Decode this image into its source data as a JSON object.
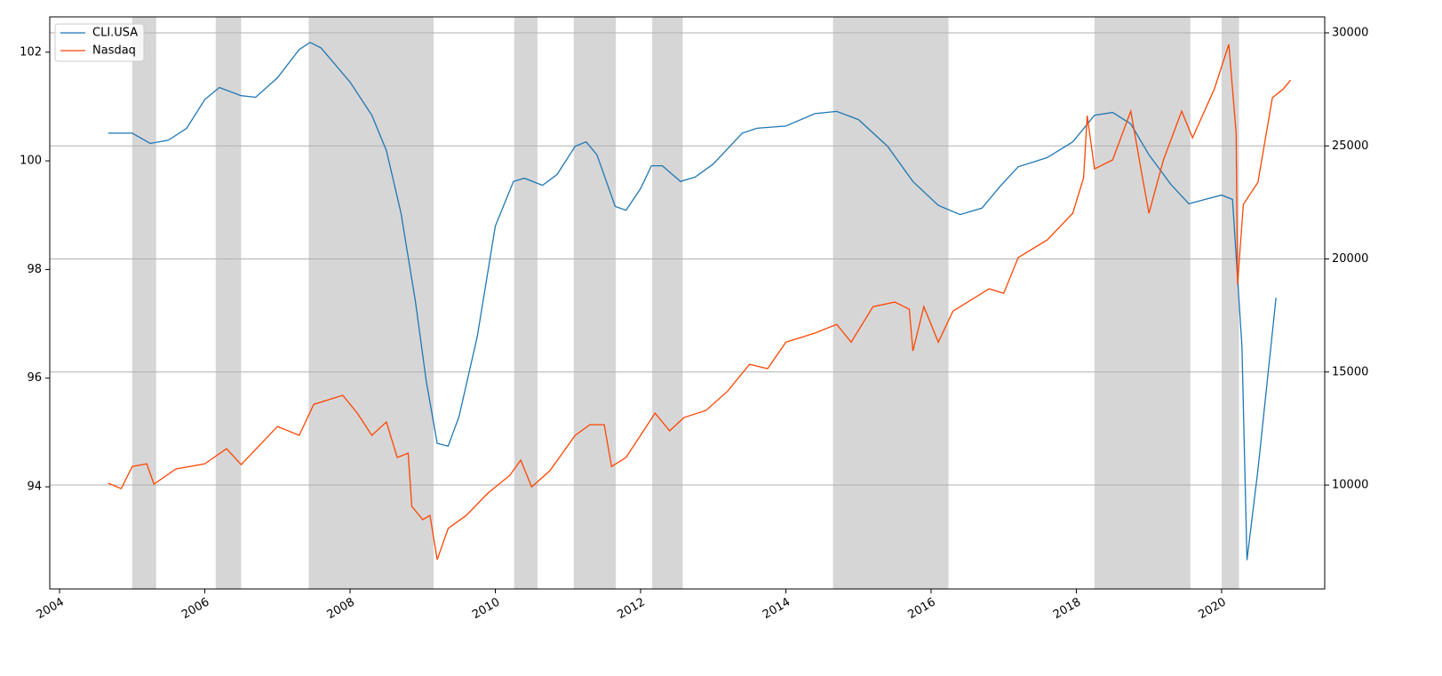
{
  "chart_data": {
    "type": "line",
    "xlim": [
      2003.865,
      2021.42
    ],
    "xticks": [
      2004,
      2006,
      2008,
      2010,
      2012,
      2014,
      2016,
      2018,
      2020
    ],
    "ylim": [
      92.12,
      102.65
    ],
    "yticks": [
      94,
      96,
      98,
      100,
      102
    ],
    "y2lim": [
      5405,
      30707
    ],
    "y2ticks": [
      10000,
      15000,
      20000,
      25000,
      30000
    ],
    "grid": true,
    "legend": "upper left",
    "span_color": "#d6d6d6",
    "shaded_regions": [
      [
        2005.0,
        2005.33
      ],
      [
        2006.15,
        2006.5
      ],
      [
        2007.43,
        2009.15
      ],
      [
        2010.26,
        2010.58
      ],
      [
        2011.08,
        2011.66
      ],
      [
        2012.16,
        2012.58
      ],
      [
        2014.65,
        2016.24
      ],
      [
        2018.25,
        2019.57
      ],
      [
        2020.0,
        2020.24
      ]
    ],
    "series": [
      {
        "name": "CLI.USA",
        "color": "#1f77b4",
        "x": [
          2004.67,
          2005.0,
          2005.25,
          2005.5,
          2005.75,
          2006.0,
          2006.2,
          2006.5,
          2006.7,
          2007.0,
          2007.3,
          2007.45,
          2007.6,
          2008.0,
          2008.3,
          2008.5,
          2008.7,
          2008.9,
          2009.05,
          2009.2,
          2009.35,
          2009.5,
          2009.75,
          2010.0,
          2010.25,
          2010.4,
          2010.65,
          2010.85,
          2011.1,
          2011.25,
          2011.4,
          2011.65,
          2011.8,
          2012.0,
          2012.15,
          2012.3,
          2012.55,
          2012.75,
          2013.0,
          2013.4,
          2013.6,
          2014.0,
          2014.4,
          2014.7,
          2015.0,
          2015.4,
          2015.75,
          2016.1,
          2016.4,
          2016.7,
          2016.95,
          2017.2,
          2017.6,
          2017.95,
          2018.25,
          2018.5,
          2018.75,
          2019.0,
          2019.3,
          2019.55,
          2019.8,
          2020.0,
          2020.15,
          2020.28,
          2020.35,
          2020.5,
          2020.75
        ],
        "values": [
          100.51,
          100.51,
          100.32,
          100.38,
          100.6,
          101.13,
          101.35,
          101.2,
          101.17,
          101.53,
          102.05,
          102.18,
          102.08,
          101.45,
          100.84,
          100.19,
          99.05,
          97.41,
          95.94,
          94.8,
          94.75,
          95.29,
          96.76,
          98.8,
          99.62,
          99.68,
          99.55,
          99.75,
          100.27,
          100.35,
          100.11,
          99.16,
          99.09,
          99.49,
          99.91,
          99.91,
          99.62,
          99.7,
          99.94,
          100.51,
          100.6,
          100.64,
          100.87,
          100.91,
          100.76,
          100.27,
          99.62,
          99.18,
          99.01,
          99.13,
          99.53,
          99.89,
          100.06,
          100.35,
          100.84,
          100.89,
          100.68,
          100.11,
          99.57,
          99.21,
          99.3,
          99.37,
          99.29,
          96.6,
          92.65,
          94.31,
          97.48
        ]
      },
      {
        "name": "Nasdaq",
        "color": "#ff4500",
        "axis": "y2",
        "x": [
          2004.67,
          2004.85,
          2005.0,
          2005.2,
          2005.3,
          2005.6,
          2006.0,
          2006.3,
          2006.5,
          2007.0,
          2007.3,
          2007.5,
          2007.9,
          2008.1,
          2008.3,
          2008.5,
          2008.65,
          2008.8,
          2008.85,
          2009.0,
          2009.1,
          2009.2,
          2009.35,
          2009.6,
          2009.9,
          2010.2,
          2010.35,
          2010.5,
          2010.75,
          2011.1,
          2011.3,
          2011.5,
          2011.6,
          2011.8,
          2012.2,
          2012.4,
          2012.6,
          2012.9,
          2013.2,
          2013.5,
          2013.75,
          2014.0,
          2014.4,
          2014.7,
          2014.9,
          2015.2,
          2015.5,
          2015.7,
          2015.75,
          2015.9,
          2016.1,
          2016.3,
          2016.8,
          2017.0,
          2017.2,
          2017.6,
          2017.95,
          2018.1,
          2018.15,
          2018.25,
          2018.5,
          2018.75,
          2018.9,
          2019.0,
          2019.2,
          2019.45,
          2019.6,
          2019.9,
          2020.1,
          2020.2,
          2020.22,
          2020.3,
          2020.5,
          2020.7,
          2020.85,
          2020.95
        ],
        "values": [
          10080,
          9840,
          10820,
          10940,
          10040,
          10710,
          10940,
          11610,
          10900,
          12590,
          12200,
          13570,
          13970,
          13180,
          12200,
          12790,
          11220,
          11410,
          9060,
          8470,
          8660,
          6700,
          8080,
          8660,
          9650,
          10430,
          11100,
          9920,
          10630,
          12200,
          12670,
          12670,
          10820,
          11220,
          13180,
          12400,
          12990,
          13300,
          14160,
          15340,
          15150,
          16320,
          16720,
          17110,
          16320,
          17890,
          18090,
          17780,
          15930,
          17890,
          16320,
          17690,
          18680,
          18480,
          20060,
          20840,
          22020,
          23590,
          26340,
          23980,
          24380,
          26540,
          23790,
          22020,
          24380,
          26540,
          25360,
          27520,
          29490,
          25560,
          18880,
          22410,
          23390,
          27130,
          27520,
          27910
        ]
      }
    ]
  }
}
